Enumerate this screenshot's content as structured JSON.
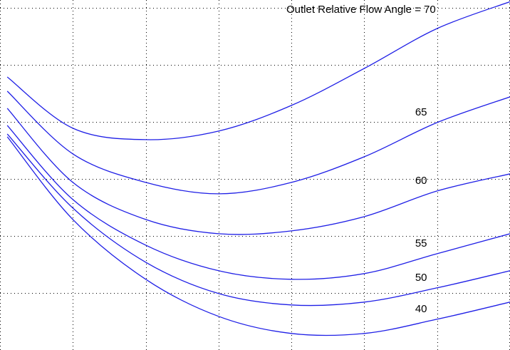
{
  "chart_data": {
    "type": "line",
    "title": "",
    "xlabel": "",
    "ylabel": "",
    "xlim": [
      0,
      7
    ],
    "ylim": [
      0,
      6.14
    ],
    "grid": true,
    "line_color": "#1f1fe6",
    "grid_color": "#000000",
    "series": [
      {
        "label": "Outlet Relative Flow Angle = 70",
        "x": [
          0.1,
          1,
          2,
          3,
          4,
          5,
          6,
          7
        ],
        "y": [
          4.79,
          3.89,
          3.69,
          3.84,
          4.29,
          4.94,
          5.64,
          6.11
        ]
      },
      {
        "label": "65",
        "x": [
          0.1,
          1,
          2,
          3,
          4,
          5,
          6,
          7
        ],
        "y": [
          4.54,
          3.44,
          2.94,
          2.74,
          2.94,
          3.39,
          3.99,
          4.44
        ]
      },
      {
        "label": "60",
        "x": [
          0.1,
          1,
          2,
          3,
          4,
          5,
          6,
          7
        ],
        "y": [
          4.24,
          2.94,
          2.29,
          2.04,
          2.09,
          2.34,
          2.79,
          3.09
        ]
      },
      {
        "label": "55",
        "x": [
          0.1,
          1,
          2,
          3,
          4,
          5,
          6,
          7
        ],
        "y": [
          3.94,
          2.64,
          1.84,
          1.39,
          1.24,
          1.34,
          1.69,
          2.04
        ]
      },
      {
        "label": "50",
        "x": [
          0.1,
          1,
          2,
          3,
          4,
          5,
          6,
          7
        ],
        "y": [
          3.79,
          2.49,
          1.54,
          0.99,
          0.79,
          0.84,
          1.09,
          1.39
        ]
      },
      {
        "label": "40",
        "x": [
          0.1,
          1,
          2,
          3,
          4,
          5,
          6,
          7
        ],
        "y": [
          3.74,
          2.29,
          1.24,
          0.59,
          0.29,
          0.29,
          0.54,
          0.84
        ]
      }
    ]
  }
}
